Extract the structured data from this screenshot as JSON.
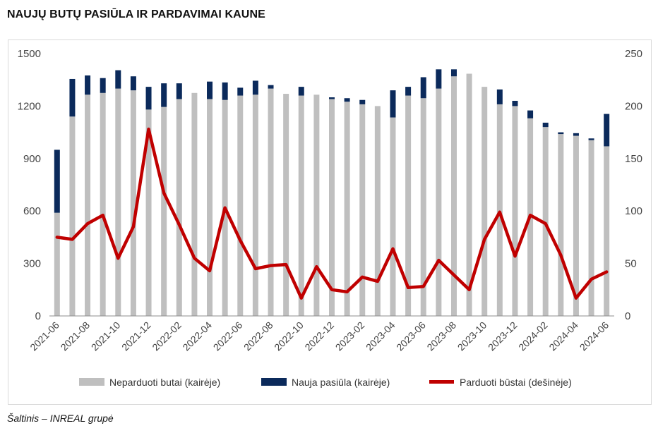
{
  "title": "NAUJŲ BUTŲ PASIŪLA IR PARDAVIMAI KAUNE",
  "source": "Šaltinis – INREAL grupė",
  "chart_data": {
    "type": "bar",
    "stacked": true,
    "categories": [
      "2021-06",
      "2021-07",
      "2021-08",
      "2021-09",
      "2021-10",
      "2021-11",
      "2021-12",
      "2022-01",
      "2022-02",
      "2022-03",
      "2022-04",
      "2022-05",
      "2022-06",
      "2022-07",
      "2022-08",
      "2022-09",
      "2022-10",
      "2022-11",
      "2022-12",
      "2023-01",
      "2023-02",
      "2023-03",
      "2023-04",
      "2023-05",
      "2023-06",
      "2023-07",
      "2023-08",
      "2023-09",
      "2023-10",
      "2023-11",
      "2023-12",
      "2024-01",
      "2024-02",
      "2024-03",
      "2024-04",
      "2024-05",
      "2024-06"
    ],
    "x_tick_labels": [
      "2021-06",
      "2021-08",
      "2021-10",
      "2021-12",
      "2022-02",
      "2022-04",
      "2022-06",
      "2022-08",
      "2022-10",
      "2022-12",
      "2023-02",
      "2023-04",
      "2023-06",
      "2023-08",
      "2023-10",
      "2023-12",
      "2024-02",
      "2024-04",
      "2024-06"
    ],
    "series": [
      {
        "name": "Neparduoti butai (kairėje)",
        "axis": "left",
        "kind": "bar",
        "color": "#bfbfbf",
        "values": [
          590,
          1140,
          1265,
          1275,
          1300,
          1290,
          1180,
          1195,
          1240,
          1275,
          1240,
          1235,
          1260,
          1265,
          1300,
          1270,
          1260,
          1265,
          1240,
          1225,
          1210,
          1200,
          1135,
          1260,
          1245,
          1300,
          1370,
          1385,
          1310,
          1210,
          1200,
          1130,
          1080,
          1040,
          1030,
          1005,
          970
        ]
      },
      {
        "name": "Nauja pasiūla (kairėje)",
        "axis": "left",
        "kind": "bar",
        "color": "#0b2a5b",
        "values": [
          360,
          215,
          110,
          85,
          105,
          80,
          130,
          135,
          90,
          0,
          100,
          100,
          45,
          80,
          20,
          0,
          50,
          0,
          10,
          20,
          25,
          0,
          155,
          50,
          120,
          110,
          40,
          0,
          0,
          85,
          30,
          45,
          25,
          10,
          15,
          10,
          185
        ]
      },
      {
        "name": "Parduoti būstai (dešinėje)",
        "axis": "right",
        "kind": "line",
        "color": "#c00000",
        "values": [
          75,
          73,
          88,
          96,
          55,
          85,
          178,
          117,
          87,
          55,
          43,
          103,
          72,
          45,
          48,
          49,
          17,
          47,
          25,
          23,
          37,
          33,
          64,
          27,
          28,
          53,
          39,
          25,
          73,
          99,
          57,
          96,
          88,
          58,
          17,
          35,
          42
        ]
      }
    ],
    "y_left": {
      "min": 0,
      "max": 1500,
      "ticks": [
        0,
        300,
        600,
        900,
        1200,
        1500
      ]
    },
    "y_right": {
      "min": 0,
      "max": 250,
      "ticks": [
        0,
        50,
        100,
        150,
        200,
        250
      ]
    },
    "grid": false,
    "legend_position": "bottom"
  }
}
